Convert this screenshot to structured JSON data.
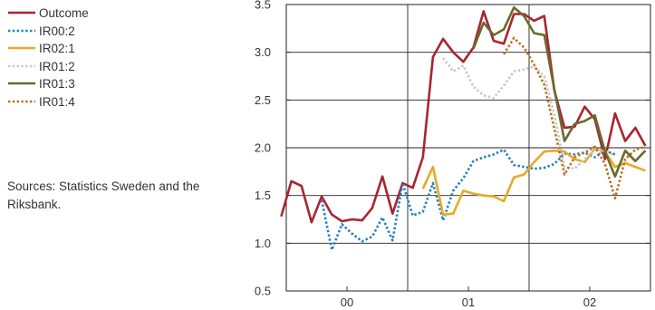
{
  "legend": {
    "items": [
      {
        "label": "Outcome",
        "color": "#a8252f",
        "dash": "solid"
      },
      {
        "label": "IR00:2",
        "color": "#1f7fc4",
        "dash": "dotted"
      },
      {
        "label": "IR02:1",
        "color": "#e8a92a",
        "dash": "solid"
      },
      {
        "label": "IR01:2",
        "color": "#c8c8c8",
        "dash": "dotted"
      },
      {
        "label": "IR01:3",
        "color": "#6b6a2c",
        "dash": "solid"
      },
      {
        "label": "IR01:4",
        "color": "#b8701c",
        "dash": "dotted"
      }
    ]
  },
  "source_note": "Sources: Statistics Sweden and the Riksbank.",
  "chart_data": {
    "type": "line",
    "title": "",
    "xlabel": "",
    "ylabel": "",
    "x_ticks": [
      "00",
      "01",
      "02"
    ],
    "x_range": [
      "2000-01",
      "2002-12"
    ],
    "ylim": [
      0.5,
      3.5
    ],
    "y_ticks": [
      "0.5",
      "1.0",
      "1.5",
      "2.0",
      "2.5",
      "3.0",
      "3.5"
    ],
    "grid": "year boundaries and every 0.5",
    "series": [
      {
        "name": "Outcome",
        "x": [
          "1999-12",
          "2000-01",
          "2000-02",
          "2000-03",
          "2000-04",
          "2000-05",
          "2000-06",
          "2000-07",
          "2000-08",
          "2000-09",
          "2000-10",
          "2000-11",
          "2000-12",
          "2001-01",
          "2001-02",
          "2001-03",
          "2001-04",
          "2001-05",
          "2001-06",
          "2001-07",
          "2001-08",
          "2001-09",
          "2001-10",
          "2001-11",
          "2001-12",
          "2002-01",
          "2002-02",
          "2002-03",
          "2002-04",
          "2002-05",
          "2002-06",
          "2002-07",
          "2002-08",
          "2002-09",
          "2002-10",
          "2002-11",
          "2002-12"
        ],
        "values": [
          1.28,
          1.65,
          1.6,
          1.22,
          1.49,
          1.3,
          1.23,
          1.25,
          1.24,
          1.37,
          1.7,
          1.31,
          1.63,
          1.58,
          1.9,
          2.95,
          3.14,
          3.0,
          2.9,
          3.05,
          3.43,
          3.12,
          3.09,
          3.4,
          3.4,
          3.33,
          3.38,
          2.6,
          2.21,
          2.22,
          2.43,
          2.3,
          1.88,
          2.36,
          2.07,
          2.21,
          2.02
        ]
      },
      {
        "name": "IR00:2",
        "x": [
          "2000-04",
          "2000-05",
          "2000-06",
          "2000-07",
          "2000-08",
          "2000-09",
          "2000-10",
          "2000-11",
          "2000-12",
          "2001-01",
          "2001-02",
          "2001-03",
          "2001-04",
          "2001-05",
          "2001-06",
          "2001-07",
          "2001-08",
          "2001-09",
          "2001-10",
          "2001-11",
          "2001-12",
          "2002-01",
          "2002-02",
          "2002-03",
          "2002-04",
          "2002-05",
          "2002-06",
          "2002-07",
          "2002-08",
          "2002-09"
        ],
        "values": [
          1.45,
          0.93,
          1.2,
          1.1,
          1.02,
          1.07,
          1.27,
          1.03,
          1.63,
          1.29,
          1.33,
          1.63,
          1.24,
          1.55,
          1.68,
          1.86,
          1.9,
          1.93,
          1.98,
          1.82,
          1.8,
          1.78,
          1.79,
          1.83,
          1.94,
          1.93,
          1.95,
          1.9,
          1.97,
          1.93
        ]
      },
      {
        "name": "IR02:1",
        "x": [
          "2001-02",
          "2001-03",
          "2001-04",
          "2001-05",
          "2001-06",
          "2001-07",
          "2001-08",
          "2001-09",
          "2001-10",
          "2001-11",
          "2001-12",
          "2002-01",
          "2002-02",
          "2002-03",
          "2002-04",
          "2002-05",
          "2002-06",
          "2002-07",
          "2002-08",
          "2002-09",
          "2002-10",
          "2002-11",
          "2002-12"
        ],
        "values": [
          1.57,
          1.8,
          1.3,
          1.31,
          1.55,
          1.52,
          1.5,
          1.49,
          1.44,
          1.69,
          1.72,
          1.85,
          1.96,
          1.97,
          1.96,
          1.88,
          1.85,
          1.99,
          1.96,
          1.8,
          1.84,
          1.8,
          1.76
        ]
      },
      {
        "name": "IR01:2",
        "x": [
          "2001-04",
          "2001-05",
          "2001-06",
          "2001-07",
          "2001-08",
          "2001-09",
          "2001-10",
          "2001-11",
          "2001-12",
          "2002-01",
          "2002-02",
          "2002-03",
          "2002-04",
          "2002-05",
          "2002-06",
          "2002-07",
          "2002-08",
          "2002-09"
        ],
        "values": [
          2.94,
          2.8,
          2.86,
          2.64,
          2.55,
          2.52,
          2.65,
          2.8,
          2.82,
          2.85,
          2.75,
          2.35,
          1.8,
          1.78,
          1.88,
          1.98,
          1.97,
          1.92
        ]
      },
      {
        "name": "IR01:3",
        "x": [
          "2001-07",
          "2001-08",
          "2001-09",
          "2001-10",
          "2001-11",
          "2001-12",
          "2002-01",
          "2002-02",
          "2002-03",
          "2002-04",
          "2002-05",
          "2002-06",
          "2002-07",
          "2002-08",
          "2002-09",
          "2002-10",
          "2002-11",
          "2002-12"
        ],
        "values": [
          3.04,
          3.31,
          3.18,
          3.24,
          3.47,
          3.38,
          3.2,
          3.18,
          2.61,
          2.07,
          2.25,
          2.28,
          2.34,
          1.96,
          1.7,
          1.97,
          1.86,
          1.97
        ]
      },
      {
        "name": "IR01:4",
        "x": [
          "2001-10",
          "2001-11",
          "2001-12",
          "2002-01",
          "2002-02",
          "2002-03",
          "2002-04",
          "2002-05",
          "2002-06",
          "2002-07",
          "2002-08",
          "2002-09",
          "2002-10",
          "2002-11",
          "2002-12"
        ],
        "values": [
          2.98,
          3.15,
          3.05,
          2.87,
          2.66,
          2.2,
          1.72,
          1.9,
          1.95,
          2.01,
          1.83,
          1.47,
          1.88,
          1.98,
          2.01
        ]
      }
    ]
  }
}
